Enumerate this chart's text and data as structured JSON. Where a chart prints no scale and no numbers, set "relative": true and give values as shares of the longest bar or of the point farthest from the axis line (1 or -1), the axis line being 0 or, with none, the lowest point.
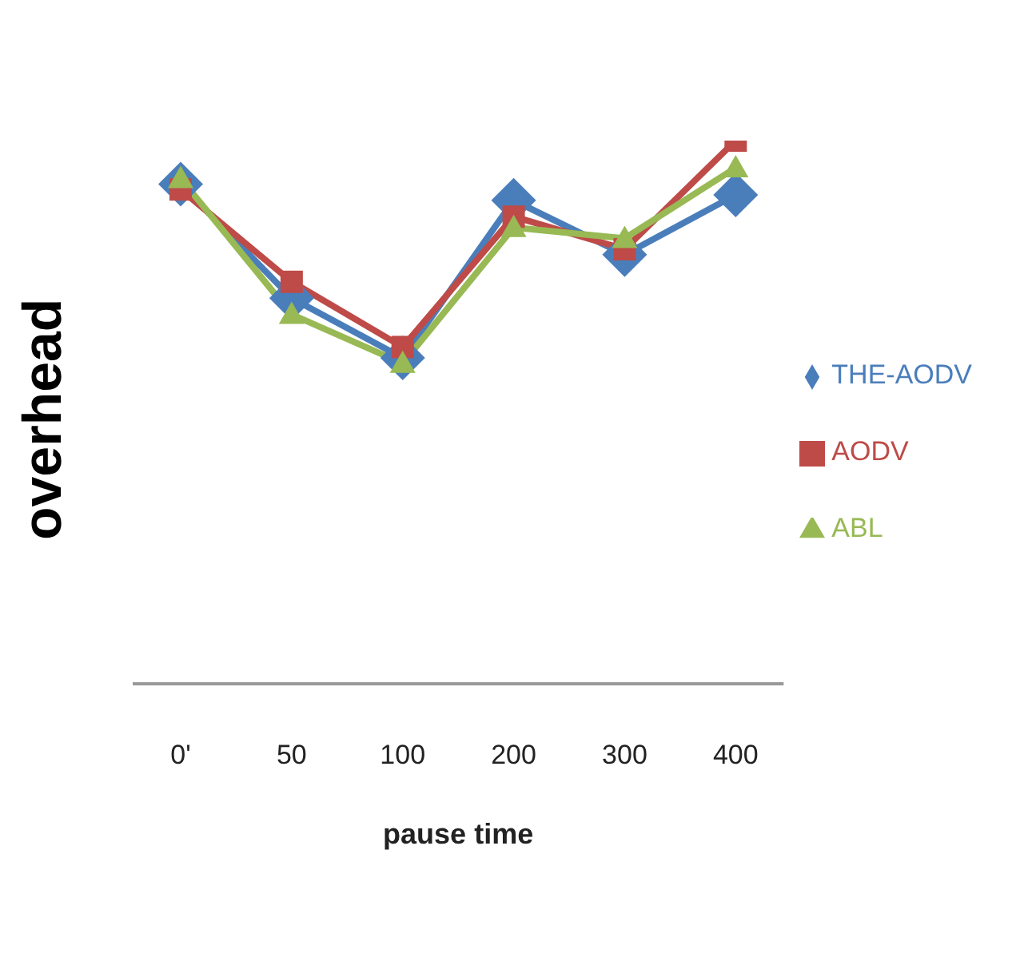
{
  "chart_data": {
    "type": "line",
    "relative": true,
    "xlabel": "pause time",
    "ylabel": "overhead",
    "categories": [
      "0'",
      "50",
      "100",
      "200",
      "300",
      "400"
    ],
    "series": [
      {
        "name": "THE-AODV",
        "color": "#4a7ebb",
        "marker": "diamond",
        "values": [
          0.92,
          0.71,
          0.6,
          0.89,
          0.79,
          0.9
        ]
      },
      {
        "name": "AODV",
        "color": "#be4b48",
        "marker": "square",
        "values": [
          0.91,
          0.74,
          0.62,
          0.86,
          0.8,
          1
        ]
      },
      {
        "name": "ABL",
        "color": "#98b954",
        "marker": "triangle",
        "values": [
          0.93,
          0.68,
          0.59,
          0.84,
          0.82,
          0.95
        ]
      }
    ],
    "legend": "right",
    "grid": false
  }
}
